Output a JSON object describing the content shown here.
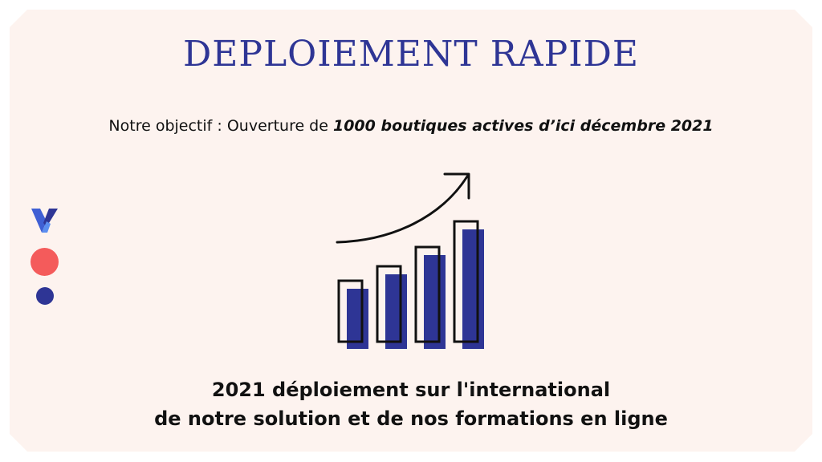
{
  "title": "DEPLOIEMENT RAPIDE",
  "objective": {
    "prefix": "Notre objectif :  Ouverture de ",
    "highlight": "1000 boutiques actives d’ici décembre 2021"
  },
  "footer": {
    "line1": "2021 déploiement sur l'international",
    "line2": "de notre solution et de nos formations en ligne"
  },
  "colors": {
    "accent_blue": "#2e3595",
    "accent_red": "#f45b5b",
    "logo_light": "#5b8ef0",
    "background": "#fdf3ef"
  },
  "icons": {
    "logo": "y-logo-icon",
    "chart": "growth-bar-chart-icon"
  }
}
